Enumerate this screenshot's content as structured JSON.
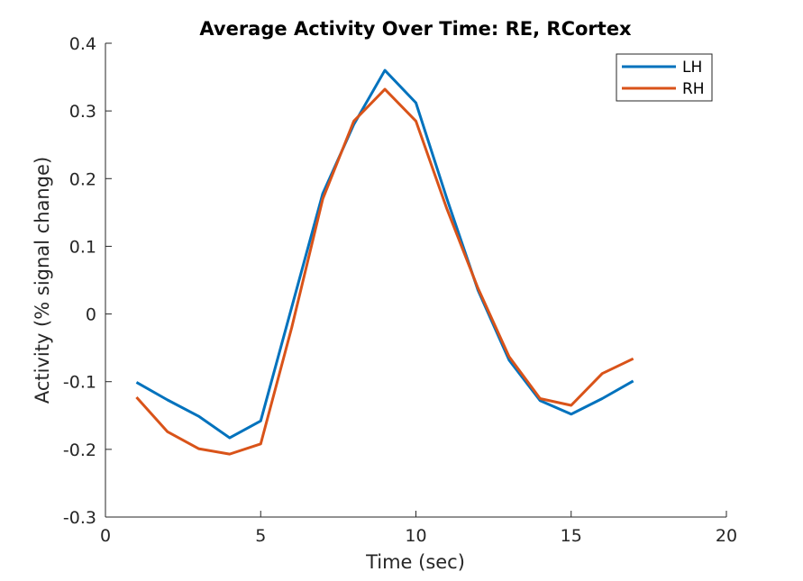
{
  "chart_data": {
    "type": "line",
    "title": "Average Activity Over Time: RE, RCortex",
    "xlabel": "Time (sec)",
    "ylabel": "Activity (% signal change)",
    "xlim": [
      0,
      20
    ],
    "ylim": [
      -0.3,
      0.4
    ],
    "xticks": [
      "0",
      "5",
      "10",
      "15",
      "20"
    ],
    "yticks": [
      "-0.3",
      "-0.2",
      "-0.1",
      "0",
      "0.1",
      "0.2",
      "0.3",
      "0.4"
    ],
    "grid": false,
    "legend_position": "top-right",
    "x": [
      1,
      2,
      3,
      4,
      5,
      6,
      7,
      8,
      9,
      10,
      11,
      12,
      13,
      14,
      15,
      16,
      17
    ],
    "series": [
      {
        "name": "LH",
        "color": "#0072BD",
        "values": [
          -0.101,
          -0.127,
          -0.151,
          -0.183,
          -0.158,
          0.01,
          0.178,
          0.28,
          0.36,
          0.312,
          0.17,
          0.035,
          -0.068,
          -0.128,
          -0.148,
          -0.125,
          -0.099
        ]
      },
      {
        "name": "RH",
        "color": "#D95319",
        "values": [
          -0.123,
          -0.174,
          -0.199,
          -0.207,
          -0.192,
          -0.02,
          0.17,
          0.285,
          0.332,
          0.285,
          0.155,
          0.038,
          -0.063,
          -0.125,
          -0.135,
          -0.088,
          -0.066
        ]
      }
    ]
  }
}
